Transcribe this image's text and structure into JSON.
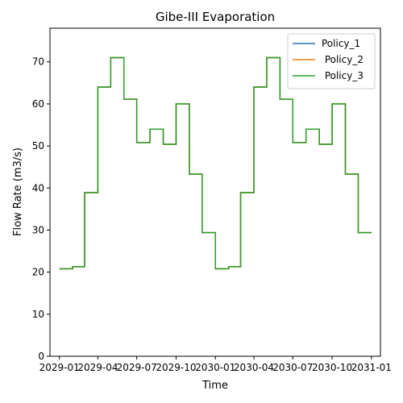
{
  "chart_data": {
    "type": "line",
    "title": "Gibe-III Evaporation",
    "xlabel": "Time",
    "ylabel": "Flow Rate (m3/s)",
    "step": true,
    "x_dates": [
      "2029-01-01",
      "2029-02-01",
      "2029-03-01",
      "2029-04-01",
      "2029-05-01",
      "2029-06-01",
      "2029-07-01",
      "2029-08-01",
      "2029-09-01",
      "2029-10-01",
      "2029-11-01",
      "2029-12-01",
      "2030-01-01",
      "2030-02-01",
      "2030-03-01",
      "2030-04-01",
      "2030-05-01",
      "2030-06-01",
      "2030-07-01",
      "2030-08-01",
      "2030-09-01",
      "2030-10-01",
      "2030-11-01",
      "2030-12-01",
      "2031-01-01"
    ],
    "xlim": [
      "2028-12-10",
      "2031-01-22"
    ],
    "ylim": [
      0,
      78
    ],
    "x_ticks": [
      "2029-01-01",
      "2029-04-01",
      "2029-07-01",
      "2029-10-01",
      "2030-01-01",
      "2030-04-01",
      "2030-07-01",
      "2030-10-01",
      "2031-01-01"
    ],
    "x_tick_labels": [
      "2029-01",
      "2029-04",
      "2029-07",
      "2029-10",
      "2030-01",
      "2030-04",
      "2030-07",
      "2030-10",
      "2031-01"
    ],
    "y_ticks": [
      0,
      10,
      20,
      30,
      40,
      50,
      60,
      70
    ],
    "y_tick_labels": [
      "0",
      "10",
      "20",
      "30",
      "40",
      "50",
      "60",
      "70"
    ],
    "legend_position": "top-right",
    "series": [
      {
        "name": "Policy_1",
        "color": "#1f77b4",
        "values": [
          20.8,
          21.3,
          38.9,
          64.0,
          71.0,
          61.1,
          50.8,
          54.0,
          50.4,
          60.0,
          43.3,
          29.4,
          20.8,
          21.3,
          38.9,
          64.0,
          71.0,
          61.1,
          50.8,
          54.0,
          50.4,
          60.0,
          43.3,
          29.4,
          29.4
        ]
      },
      {
        "name": " Policy_2",
        "color": "#ff7f0e",
        "values": [
          20.8,
          21.3,
          38.9,
          64.0,
          71.0,
          61.1,
          50.8,
          54.0,
          50.4,
          60.0,
          43.3,
          29.4,
          20.8,
          21.3,
          38.9,
          64.0,
          71.0,
          61.1,
          50.8,
          54.0,
          50.4,
          60.0,
          43.3,
          29.4,
          29.4
        ]
      },
      {
        "name": " Policy_3",
        "color": "#2ca02c",
        "values": [
          20.8,
          21.3,
          38.9,
          64.0,
          71.0,
          61.1,
          50.8,
          54.0,
          50.4,
          60.0,
          43.3,
          29.4,
          20.8,
          21.3,
          38.9,
          64.0,
          71.0,
          61.1,
          50.8,
          54.0,
          50.4,
          60.0,
          43.3,
          29.4,
          29.4
        ]
      }
    ]
  }
}
